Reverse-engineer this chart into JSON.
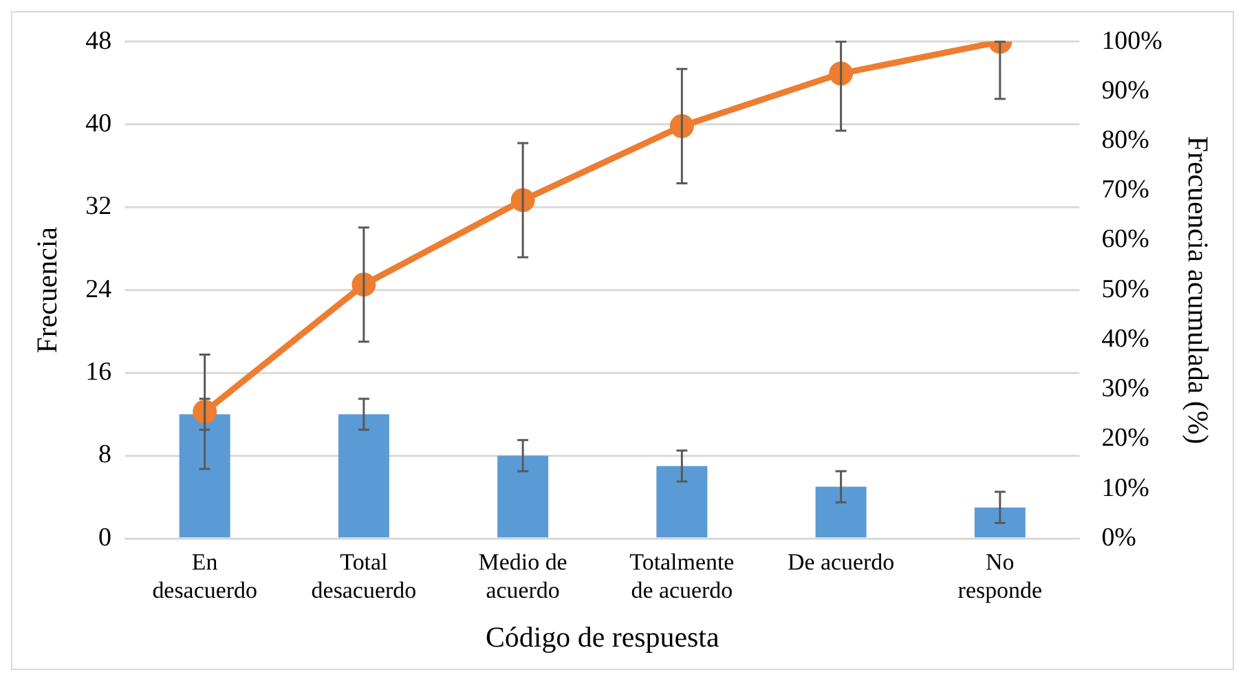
{
  "chart_data": {
    "type": "bar",
    "xlabel": "Código de respuesta",
    "ylabel": "Frecuencia",
    "y2label": "Frecuencia acumulada (%)",
    "categories": [
      "En desacuerdo",
      "Total desacuerdo",
      "Medio de acuerdo",
      "Totalmente de acuerdo",
      "De acuerdo",
      "No responde"
    ],
    "series": [
      {
        "color": "#5b9bd5",
        "values": [
          12,
          12,
          8,
          7,
          5,
          3
        ],
        "errors": [
          1.5,
          1.5,
          1.5,
          1.5,
          1.5,
          1.5
        ]
      },
      {
        "type": "line",
        "axis": "y2",
        "color": "#ed7d31",
        "values": [
          25.5,
          51.1,
          68.1,
          83.0,
          93.6,
          100
        ],
        "errors": [
          11.5,
          11.5,
          11.5,
          11.5,
          [
            82.1,
            100
          ],
          [
            88.5,
            100
          ]
        ],
        "marker": "circle"
      }
    ],
    "ylim": [
      0,
      48
    ],
    "yticks": [
      0,
      8,
      16,
      24,
      32,
      40,
      48
    ],
    "y2lim": [
      0,
      100
    ],
    "y2ticks": [
      {
        "value": 0,
        "label": "0%"
      },
      {
        "value": 10,
        "label": "10%"
      },
      {
        "value": 20,
        "label": "20%"
      },
      {
        "value": 30,
        "label": "30%"
      },
      {
        "value": 40,
        "label": "40%"
      },
      {
        "value": 50,
        "label": "50%"
      },
      {
        "value": 60,
        "label": "60%"
      },
      {
        "value": 70,
        "label": "70%"
      },
      {
        "value": 80,
        "label": "80%"
      },
      {
        "value": 90,
        "label": "90%"
      },
      {
        "value": 100,
        "label": "100%"
      }
    ],
    "grid": "y",
    "legend": false
  }
}
